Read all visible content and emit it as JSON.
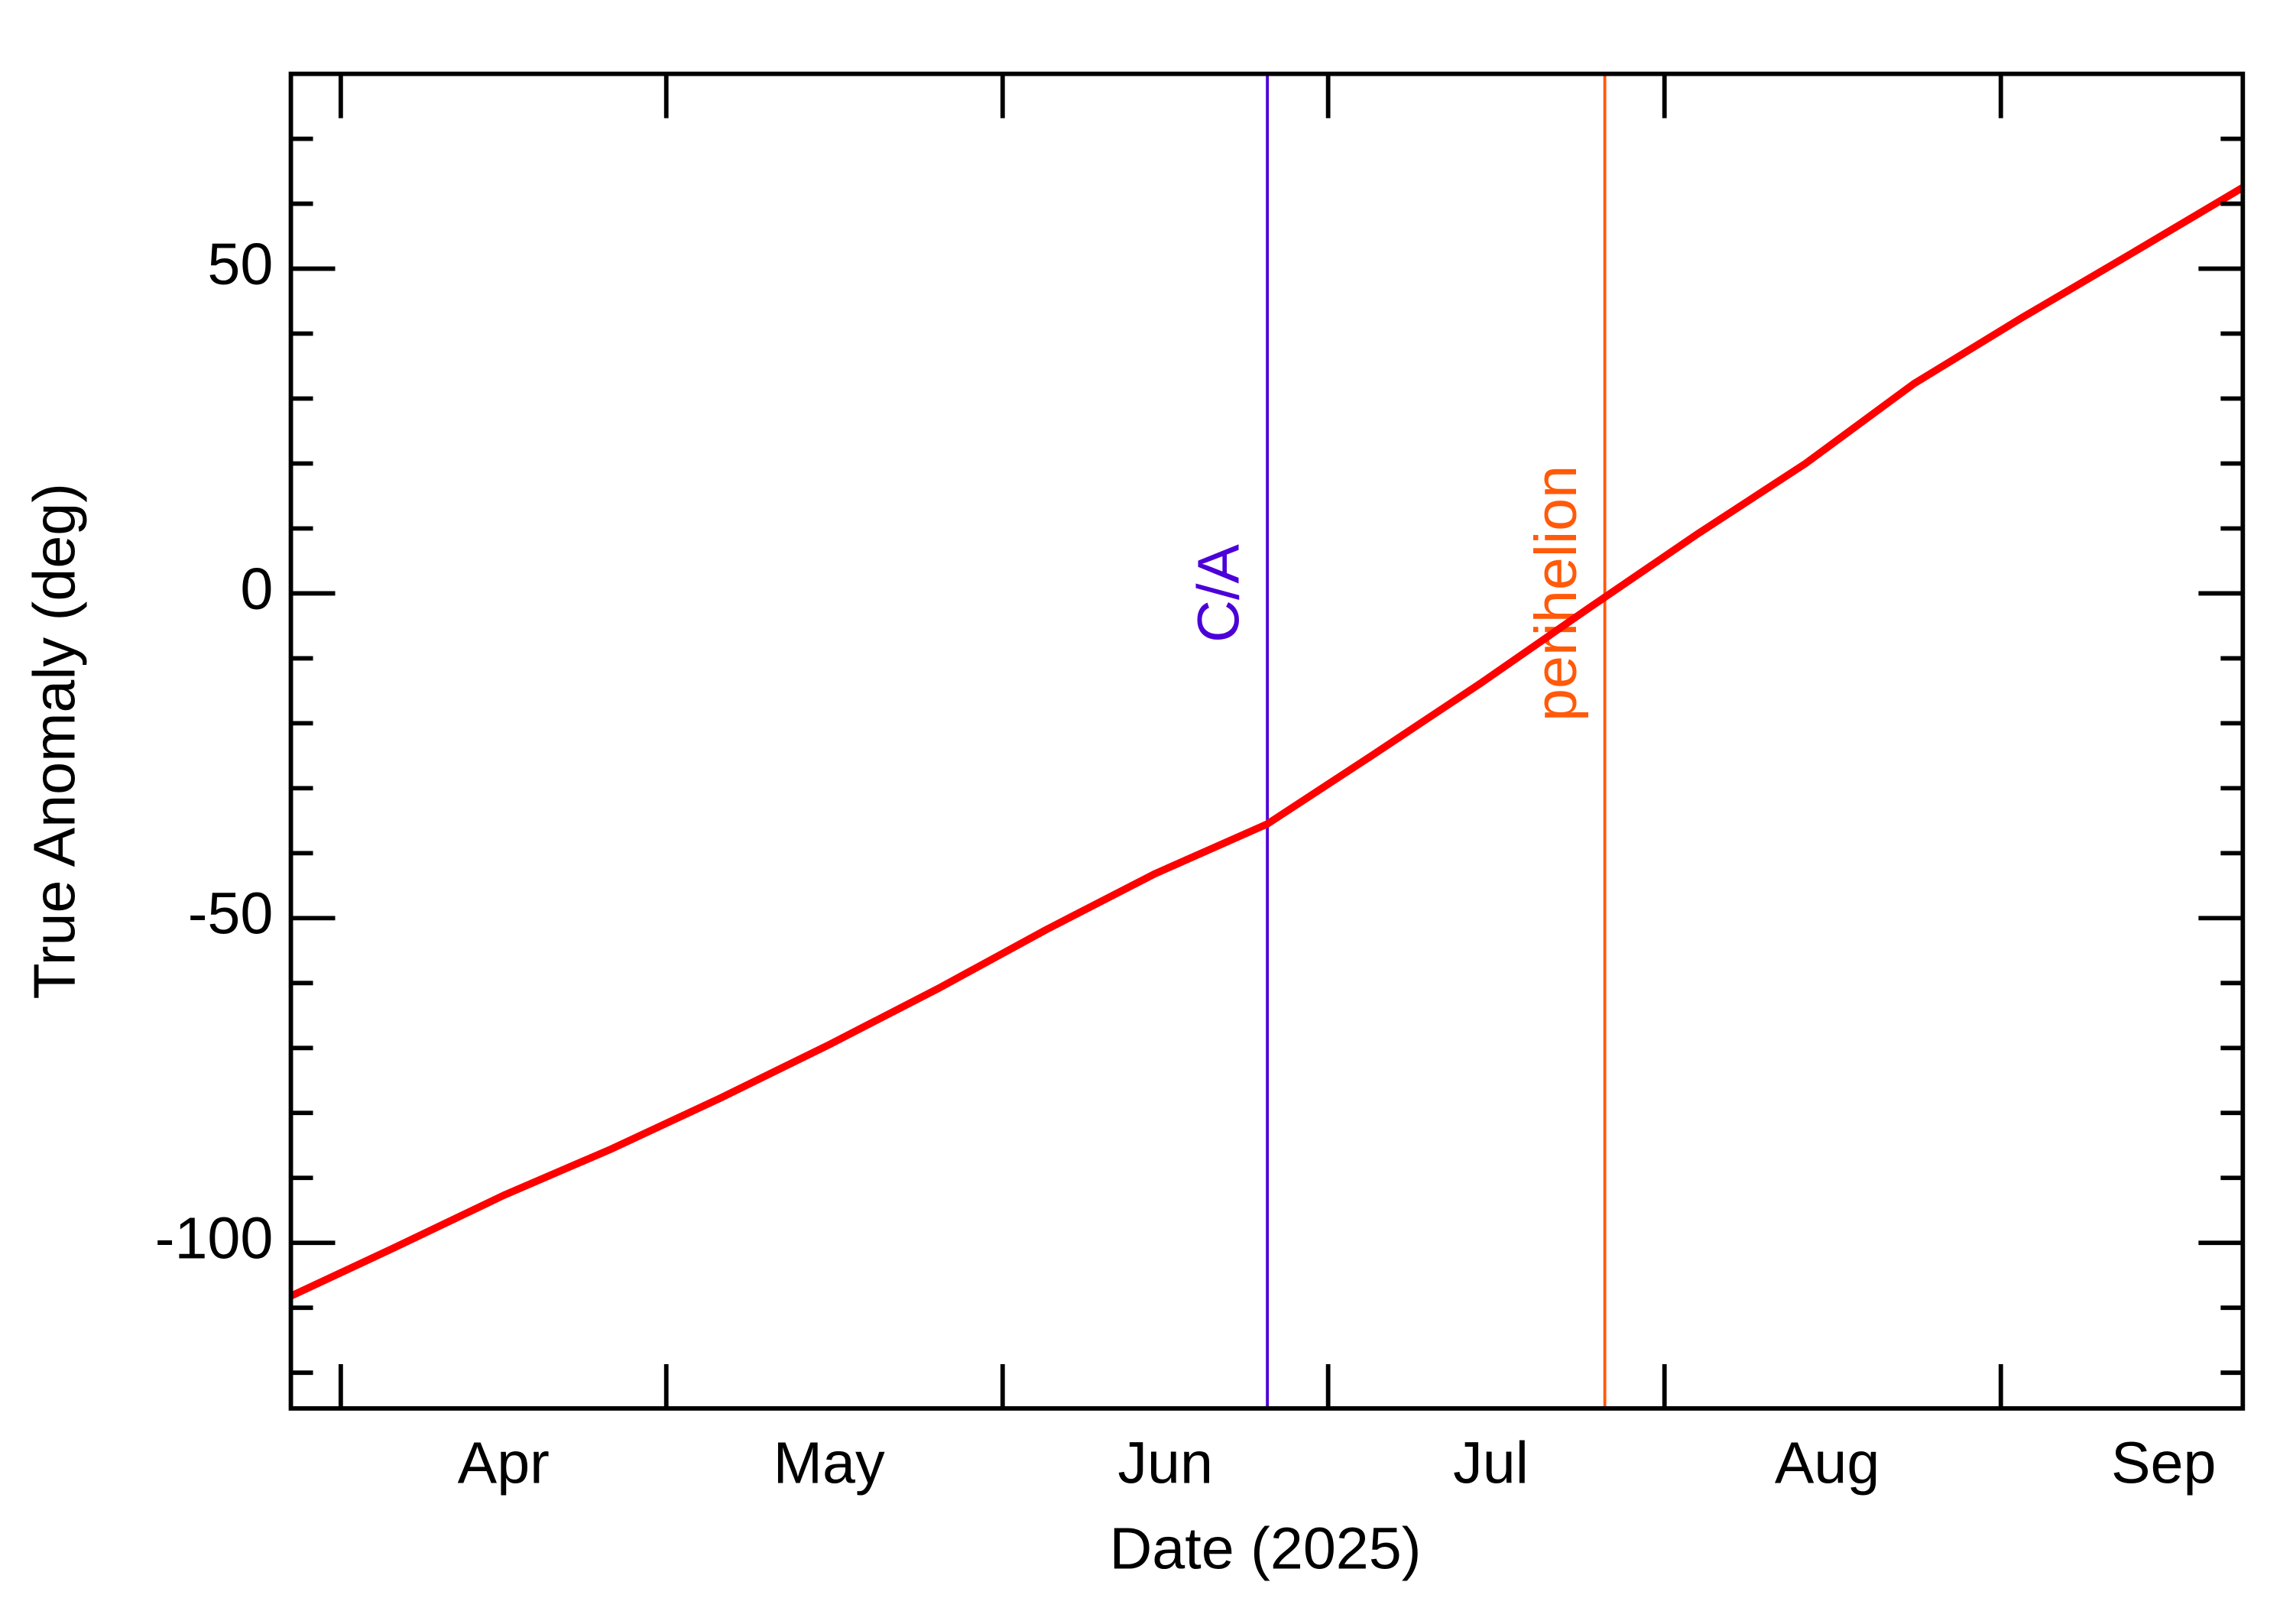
{
  "chart_data": {
    "type": "line",
    "xlabel": "Date (2025)",
    "ylabel": "True Anomaly (deg)",
    "x": [
      85.4,
      95,
      105,
      115,
      125,
      135,
      145,
      155,
      165,
      175.4,
      185,
      195,
      205,
      215,
      225,
      235,
      245,
      255,
      265.3
    ],
    "values": [
      -108.2,
      -100.7,
      -92.7,
      -85.5,
      -77.7,
      -69.5,
      -60.9,
      -51.8,
      -43.2,
      -35.5,
      -25.0,
      -13.9,
      -2.3,
      9.1,
      20.0,
      32.3,
      42.5,
      52.3,
      62.5
    ],
    "color": "#ff0000",
    "xlim": [
      85.4,
      265.3
    ],
    "xticks": [
      {
        "value": 105,
        "label": "Apr"
      },
      {
        "value": 135,
        "label": "May"
      },
      {
        "value": 166,
        "label": "Jun"
      },
      {
        "value": 196,
        "label": "Jul"
      },
      {
        "value": 227,
        "label": "Aug"
      },
      {
        "value": 258,
        "label": "Sep"
      }
    ],
    "xminor_ticks": [
      90,
      120,
      151,
      181,
      212,
      243
    ],
    "ylim": [
      -125.5,
      80
    ],
    "yticks": [
      -100,
      -50,
      0,
      50
    ],
    "yminor_ticks": [
      -120,
      -110,
      -90,
      -80,
      -70,
      -60,
      -40,
      -30,
      -20,
      -10,
      10,
      20,
      30,
      40,
      60,
      70
    ],
    "vlines": [
      {
        "x": 175.4,
        "label": "C/A",
        "color": "#4b00d8"
      },
      {
        "x": 206.5,
        "label": "perihelion",
        "color": "#ff5a0a"
      }
    ]
  }
}
